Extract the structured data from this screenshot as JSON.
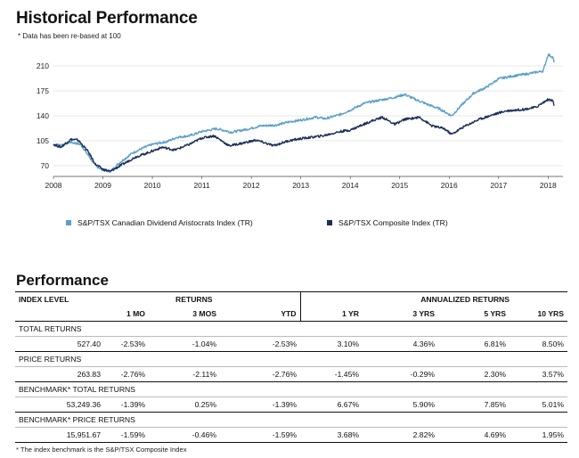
{
  "page": {
    "title": "Historical Performance",
    "note": "* Data has been re-based at 100",
    "perf_title": "Performance",
    "footnote": "* The index benchmark is the  S&P/TSX Composite Index"
  },
  "colors": {
    "dividend": "#5b9fc9",
    "composite": "#1b2f57",
    "grid": "#cfcfcf"
  },
  "chart_data": {
    "type": "line",
    "title": "",
    "xlabel": "",
    "ylabel": "",
    "x_ticks": [
      "2008",
      "2009",
      "2010",
      "2011",
      "2012",
      "2013",
      "2014",
      "2015",
      "2016",
      "2017",
      "2018"
    ],
    "y_ticks": [
      "70",
      "105",
      "140",
      "175",
      "210"
    ],
    "ylim": [
      55,
      240
    ],
    "xlim": [
      2008.0,
      2018.3
    ],
    "grid": "horizontal",
    "legend_position": "bottom",
    "series": [
      {
        "name": "S&P/TSX Canadian Dividend Aristocrats Index (TR)",
        "points": [
          [
            2008.0,
            100
          ],
          [
            2008.15,
            99
          ],
          [
            2008.35,
            103
          ],
          [
            2008.55,
            100
          ],
          [
            2008.7,
            85
          ],
          [
            2008.85,
            70
          ],
          [
            2009.0,
            64
          ],
          [
            2009.15,
            62
          ],
          [
            2009.35,
            75
          ],
          [
            2009.6,
            88
          ],
          [
            2009.85,
            96
          ],
          [
            2010.0,
            100
          ],
          [
            2010.3,
            104
          ],
          [
            2010.5,
            110
          ],
          [
            2010.75,
            112
          ],
          [
            2011.0,
            118
          ],
          [
            2011.3,
            122
          ],
          [
            2011.6,
            117
          ],
          [
            2011.9,
            121
          ],
          [
            2012.2,
            126
          ],
          [
            2012.5,
            127
          ],
          [
            2012.8,
            132
          ],
          [
            2013.0,
            134
          ],
          [
            2013.3,
            138
          ],
          [
            2013.5,
            136
          ],
          [
            2013.8,
            142
          ],
          [
            2014.0,
            148
          ],
          [
            2014.3,
            158
          ],
          [
            2014.6,
            162
          ],
          [
            2014.9,
            166
          ],
          [
            2015.1,
            170
          ],
          [
            2015.35,
            162
          ],
          [
            2015.6,
            155
          ],
          [
            2015.8,
            150
          ],
          [
            2016.05,
            140
          ],
          [
            2016.25,
            155
          ],
          [
            2016.5,
            172
          ],
          [
            2016.75,
            180
          ],
          [
            2017.0,
            192
          ],
          [
            2017.3,
            196
          ],
          [
            2017.6,
            199
          ],
          [
            2017.9,
            203
          ],
          [
            2018.0,
            226
          ],
          [
            2018.1,
            222
          ],
          [
            2018.12,
            215
          ]
        ]
      },
      {
        "name": "S&P/TSX Composite Index (TR)",
        "points": [
          [
            2008.0,
            100
          ],
          [
            2008.15,
            96
          ],
          [
            2008.35,
            107
          ],
          [
            2008.5,
            106
          ],
          [
            2008.7,
            90
          ],
          [
            2008.85,
            72
          ],
          [
            2009.0,
            65
          ],
          [
            2009.15,
            62
          ],
          [
            2009.4,
            72
          ],
          [
            2009.65,
            82
          ],
          [
            2009.9,
            88
          ],
          [
            2010.2,
            96
          ],
          [
            2010.45,
            92
          ],
          [
            2010.75,
            100
          ],
          [
            2011.0,
            109
          ],
          [
            2011.25,
            112
          ],
          [
            2011.55,
            98
          ],
          [
            2011.85,
            102
          ],
          [
            2012.1,
            106
          ],
          [
            2012.45,
            98
          ],
          [
            2012.75,
            105
          ],
          [
            2013.0,
            108
          ],
          [
            2013.45,
            112
          ],
          [
            2013.8,
            118
          ],
          [
            2014.0,
            120
          ],
          [
            2014.4,
            132
          ],
          [
            2014.65,
            138
          ],
          [
            2014.9,
            128
          ],
          [
            2015.1,
            135
          ],
          [
            2015.4,
            138
          ],
          [
            2015.65,
            126
          ],
          [
            2015.9,
            122
          ],
          [
            2016.05,
            114
          ],
          [
            2016.3,
            125
          ],
          [
            2016.6,
            135
          ],
          [
            2016.9,
            142
          ],
          [
            2017.15,
            147
          ],
          [
            2017.5,
            149
          ],
          [
            2017.75,
            152
          ],
          [
            2018.0,
            163
          ],
          [
            2018.1,
            161
          ],
          [
            2018.12,
            154
          ]
        ]
      }
    ]
  },
  "table": {
    "group_headers": {
      "index_level": "INDEX LEVEL",
      "returns": "RETURNS",
      "annualized": "ANNUALIZED RETURNS"
    },
    "columns": [
      "1 MO",
      "3 MOS",
      "YTD",
      "1 YR",
      "3 YRS",
      "5 YRS",
      "10 YRS"
    ],
    "sections": [
      {
        "label": "TOTAL RETURNS",
        "level": "527.40",
        "values": [
          "-2.53%",
          "-1.04%",
          "-2.53%",
          "3.10%",
          "4.36%",
          "6.81%",
          "8.50%"
        ]
      },
      {
        "label": "PRICE RETURNS",
        "level": "263.83",
        "values": [
          "-2.76%",
          "-2.11%",
          "-2.76%",
          "-1.45%",
          "-0.29%",
          "2.30%",
          "3.57%"
        ]
      },
      {
        "label": "BENCHMARK* TOTAL RETURNS",
        "level": "53,249.36",
        "values": [
          "-1.39%",
          "0.25%",
          "-1.39%",
          "6.67%",
          "5.90%",
          "7.85%",
          "5.01%"
        ]
      },
      {
        "label": "BENCHMARK* PRICE RETURNS",
        "level": "15,951.67",
        "values": [
          "-1.59%",
          "-0.46%",
          "-1.59%",
          "3.68%",
          "2.82%",
          "4.69%",
          "1.95%"
        ]
      }
    ]
  }
}
